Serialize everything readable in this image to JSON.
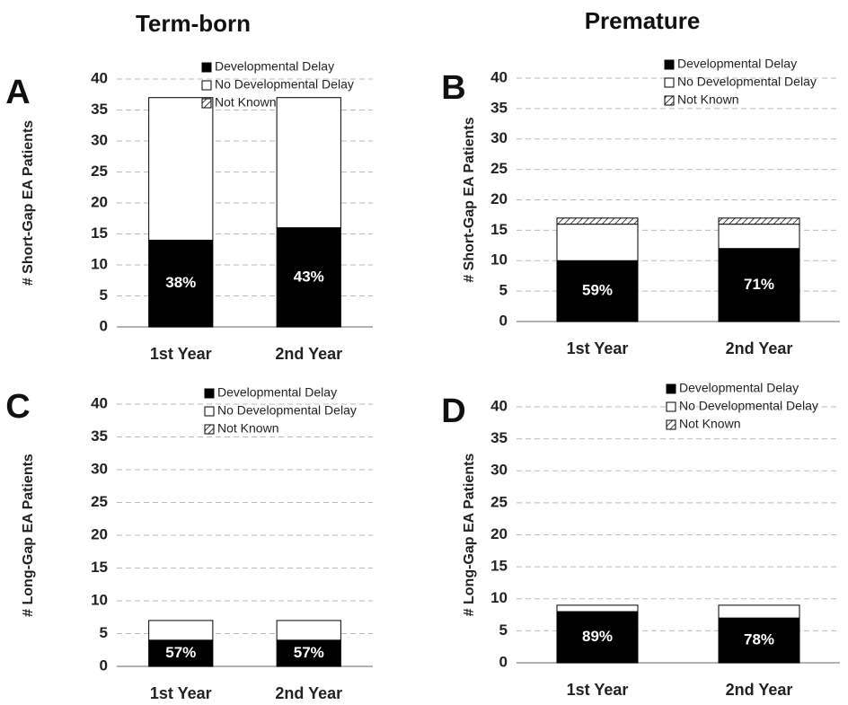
{
  "column_titles": [
    "Term-born",
    "Premature"
  ],
  "chart_data": [
    {
      "type": "bar",
      "stacked": true,
      "label": "A",
      "ylabel": "# Short-Gap EA Patients",
      "categories": [
        "1st Year",
        "2nd Year"
      ],
      "series": [
        {
          "name": "Developmental Delay",
          "color": "#000000",
          "values": [
            14,
            16
          ]
        },
        {
          "name": "No Developmental Delay",
          "color": "#ffffff",
          "values": [
            23,
            21
          ]
        },
        {
          "name": "Not Known",
          "color": "#ffffff",
          "pattern": "hatch",
          "values": [
            0,
            0
          ]
        }
      ],
      "annotations": [
        "38%",
        "43%"
      ],
      "ylim": [
        0,
        40
      ],
      "yticks": [
        0,
        5,
        10,
        15,
        20,
        25,
        30,
        35,
        40
      ],
      "grid": true
    },
    {
      "type": "bar",
      "stacked": true,
      "label": "B",
      "ylabel": "# Short-Gap EA Patients",
      "categories": [
        "1st Year",
        "2nd Year"
      ],
      "series": [
        {
          "name": "Developmental Delay",
          "color": "#000000",
          "values": [
            10,
            12
          ]
        },
        {
          "name": "No Developmental Delay",
          "color": "#ffffff",
          "values": [
            6,
            4
          ]
        },
        {
          "name": "Not Known",
          "color": "#ffffff",
          "pattern": "hatch",
          "values": [
            1,
            1
          ]
        }
      ],
      "annotations": [
        "59%",
        "71%"
      ],
      "ylim": [
        0,
        40
      ],
      "yticks": [
        0,
        5,
        10,
        15,
        20,
        25,
        30,
        35,
        40
      ],
      "grid": true
    },
    {
      "type": "bar",
      "stacked": true,
      "label": "C",
      "ylabel": "# Long-Gap EA Patients",
      "categories": [
        "1st Year",
        "2nd Year"
      ],
      "series": [
        {
          "name": "Developmental Delay",
          "color": "#000000",
          "values": [
            4,
            4
          ]
        },
        {
          "name": "No Developmental Delay",
          "color": "#ffffff",
          "values": [
            3,
            3
          ]
        },
        {
          "name": "Not Known",
          "color": "#ffffff",
          "pattern": "hatch",
          "values": [
            0,
            0
          ]
        }
      ],
      "annotations": [
        "57%",
        "57%"
      ],
      "ylim": [
        0,
        40
      ],
      "yticks": [
        0,
        5,
        10,
        15,
        20,
        25,
        30,
        35,
        40
      ],
      "grid": true
    },
    {
      "type": "bar",
      "stacked": true,
      "label": "D",
      "ylabel": "# Long-Gap EA Patients",
      "categories": [
        "1st Year",
        "2nd Year"
      ],
      "series": [
        {
          "name": "Developmental Delay",
          "color": "#000000",
          "values": [
            8,
            7
          ]
        },
        {
          "name": "No Developmental Delay",
          "color": "#ffffff",
          "values": [
            1,
            2
          ]
        },
        {
          "name": "Not Known",
          "color": "#ffffff",
          "pattern": "hatch",
          "values": [
            0,
            0
          ]
        }
      ],
      "annotations": [
        "89%",
        "78%"
      ],
      "ylim": [
        0,
        40
      ],
      "yticks": [
        0,
        5,
        10,
        15,
        20,
        25,
        30,
        35,
        40
      ],
      "grid": true
    }
  ]
}
